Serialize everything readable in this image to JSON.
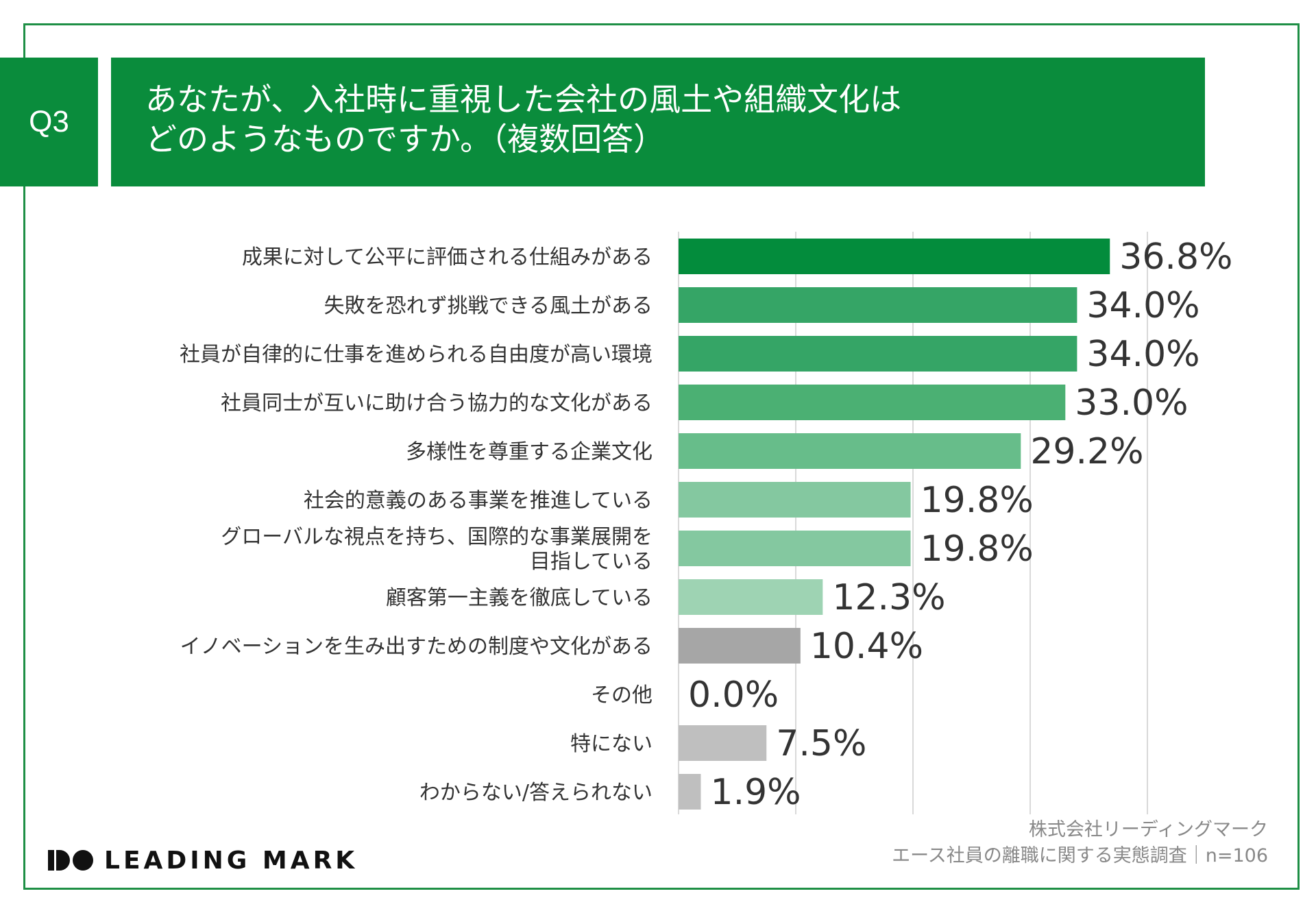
{
  "question": {
    "number": "Q3",
    "title_line1": "あなたが、入社時に重視した会社の風土や組織文化は",
    "title_line2": "どのようなものですか。（複数回答）"
  },
  "chart_data": {
    "type": "bar",
    "orientation": "horizontal",
    "categories": [
      [
        "成果に対して公平に評価される仕組みがある"
      ],
      [
        "失敗を恐れず挑戦できる風土がある"
      ],
      [
        "社員が自律的に仕事を進められる自由度が高い環境"
      ],
      [
        "社員同士が互いに助け合う協力的な文化がある"
      ],
      [
        "多様性を尊重する企業文化"
      ],
      [
        "社会的意義のある事業を推進している"
      ],
      [
        "グローバルな視点を持ち、国際的な事業展開を",
        "目指している"
      ],
      [
        "顧客第一主義を徹底している"
      ],
      [
        "イノベーションを生み出すための制度や文化がある"
      ],
      [
        "その他"
      ],
      [
        "特にない"
      ],
      [
        "わからない/答えられない"
      ]
    ],
    "values": [
      36.8,
      34.0,
      34.0,
      33.0,
      29.2,
      19.8,
      19.8,
      12.3,
      10.4,
      0.0,
      7.5,
      1.9
    ],
    "value_labels": [
      "36.8%",
      "34.0%",
      "34.0%",
      "33.0%",
      "29.2%",
      "19.8%",
      "19.8%",
      "12.3%",
      "10.4%",
      "0.0%",
      "7.5%",
      "1.9%"
    ],
    "bar_colors": [
      "#038c3c",
      "#35a566",
      "#35a566",
      "#4bb073",
      "#67bd8a",
      "#84c8a0",
      "#84c8a0",
      "#9ed3b3",
      "#a6a6a6",
      "#bfbfbf",
      "#bfbfbf",
      "#bfbfbf"
    ],
    "grid_color": "#d9d9d9",
    "xlim": [
      0,
      40
    ],
    "x_gridlines": [
      0,
      10,
      20,
      30,
      40
    ],
    "grid": true
  },
  "source": {
    "line1": "株式会社リーディングマーク",
    "line2": "エース社員の離職に関する実態調査｜n=106"
  },
  "logo": {
    "text": "LEADING MARK"
  }
}
